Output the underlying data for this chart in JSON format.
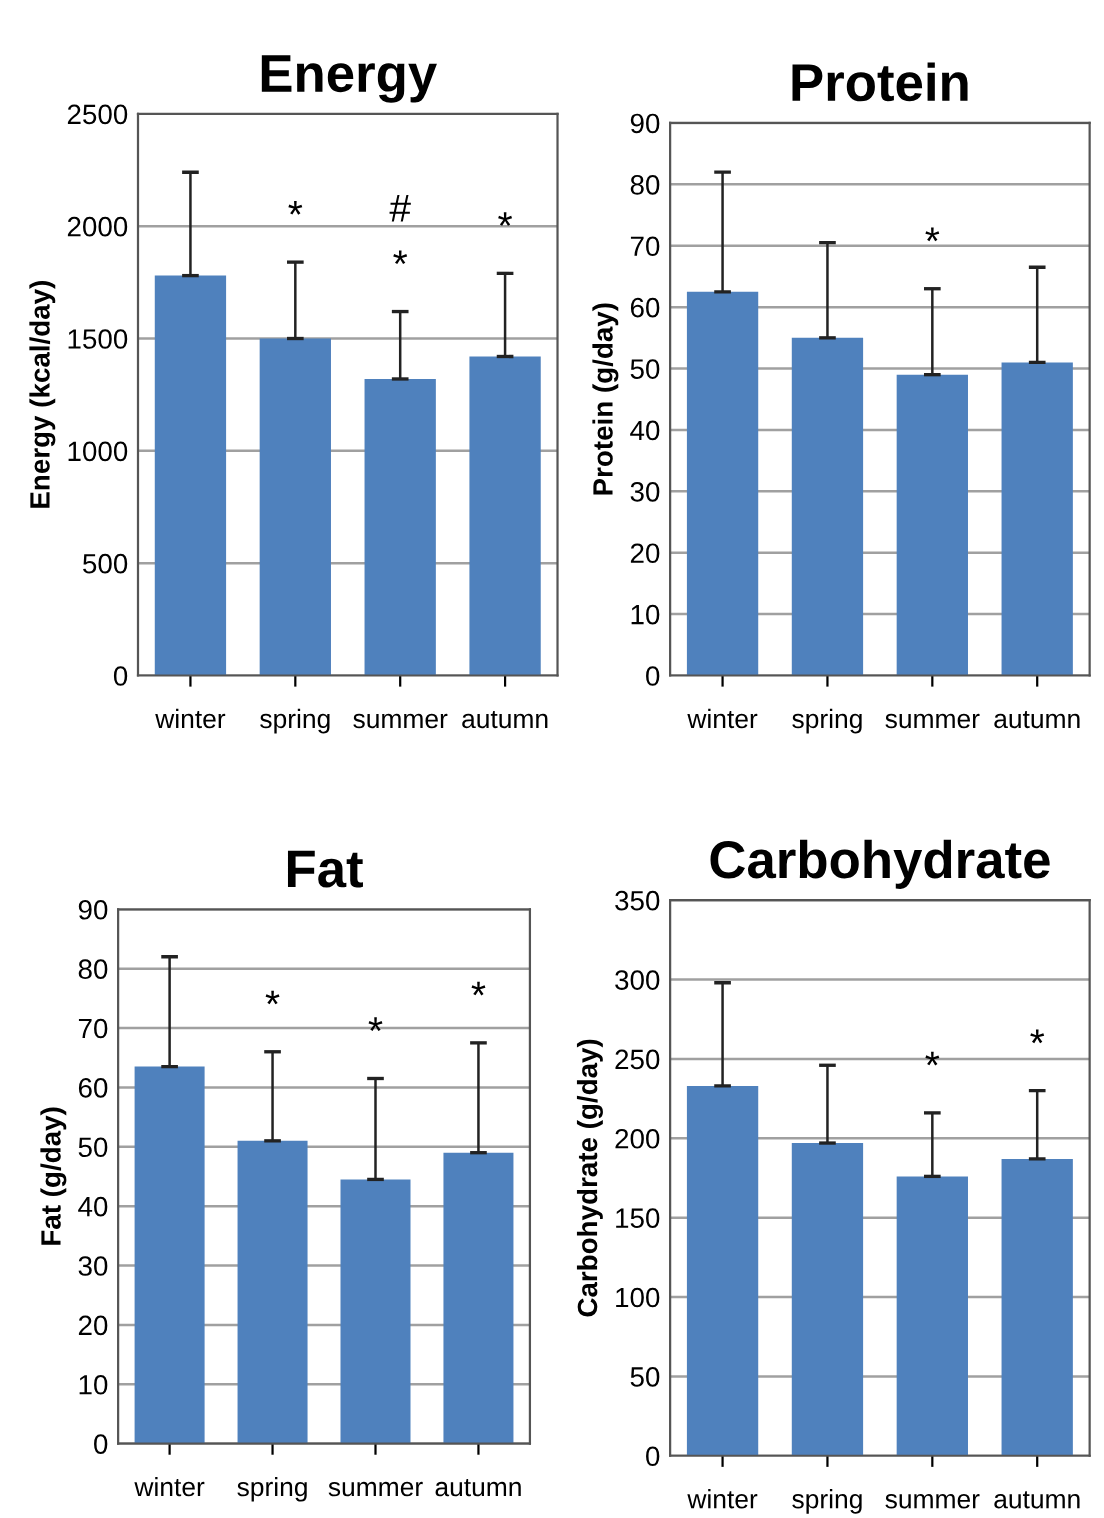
{
  "chart_data": [
    {
      "type": "bar",
      "title": "Energy",
      "ylabel": "Energy (kcal/day)",
      "categories": [
        "winter",
        "spring",
        "summer",
        "autumn"
      ],
      "values": [
        1780,
        1500,
        1320,
        1420
      ],
      "errors": [
        [
          1780,
          2240
        ],
        [
          1500,
          1840
        ],
        [
          1320,
          1620
        ],
        [
          1420,
          1790
        ]
      ],
      "color": "#4f81bd",
      "ylim": [
        0,
        2500
      ],
      "yticks": [
        0,
        500,
        1000,
        1500,
        2000,
        2500
      ],
      "grid": "y",
      "annotations": [
        {
          "text": "*",
          "x": "spring",
          "y": 1840
        },
        {
          "text": "*",
          "x": "summer",
          "y": 1620
        },
        {
          "text": "#",
          "x": "summer",
          "y": 1620
        },
        {
          "text": "*",
          "x": "autumn",
          "y": 1790
        }
      ]
    },
    {
      "type": "bar",
      "title": "Protein",
      "ylabel": "Protein (g/day)",
      "categories": [
        "winter",
        "spring",
        "summer",
        "autumn"
      ],
      "values": [
        62.5,
        55,
        49,
        51
      ],
      "errors": [
        [
          62.5,
          82
        ],
        [
          55,
          70.5
        ],
        [
          49,
          63
        ],
        [
          51,
          66.5
        ]
      ],
      "color": "#4f81bd",
      "ylim": [
        0,
        90
      ],
      "yticks": [
        0,
        10,
        20,
        30,
        40,
        50,
        60,
        70,
        80,
        90
      ],
      "grid": "y",
      "annotations": [
        {
          "text": "*",
          "x": "summer",
          "y": 63
        }
      ]
    },
    {
      "type": "bar",
      "title": "Fat",
      "ylabel": "Fat (g/day)",
      "categories": [
        "winter",
        "spring",
        "summer",
        "autumn"
      ],
      "values": [
        63.5,
        51,
        44.5,
        49
      ],
      "errors": [
        [
          63.5,
          82
        ],
        [
          51,
          66
        ],
        [
          44.5,
          61.5
        ],
        [
          49,
          67.5
        ]
      ],
      "color": "#4f81bd",
      "ylim": [
        0,
        90
      ],
      "yticks": [
        0,
        10,
        20,
        30,
        40,
        50,
        60,
        70,
        80,
        90
      ],
      "grid": "y",
      "annotations": [
        {
          "text": "*",
          "x": "spring",
          "y": 66
        },
        {
          "text": "*",
          "x": "summer",
          "y": 61.5
        },
        {
          "text": "*",
          "x": "autumn",
          "y": 67.5
        }
      ]
    },
    {
      "type": "bar",
      "title": "Carbohydrate",
      "ylabel": "Carbohydrate (g/day)",
      "categories": [
        "winter",
        "spring",
        "summer",
        "autumn"
      ],
      "values": [
        233,
        197,
        176,
        187
      ],
      "errors": [
        [
          233,
          298
        ],
        [
          197,
          246
        ],
        [
          176,
          216
        ],
        [
          187,
          230
        ]
      ],
      "color": "#4f81bd",
      "ylim": [
        0,
        350
      ],
      "yticks": [
        0,
        50,
        100,
        150,
        200,
        250,
        300,
        350
      ],
      "grid": "y",
      "annotations": [
        {
          "text": "*",
          "x": "summer",
          "y": 216
        },
        {
          "text": "*",
          "x": "autumn",
          "y": 230
        }
      ]
    }
  ]
}
